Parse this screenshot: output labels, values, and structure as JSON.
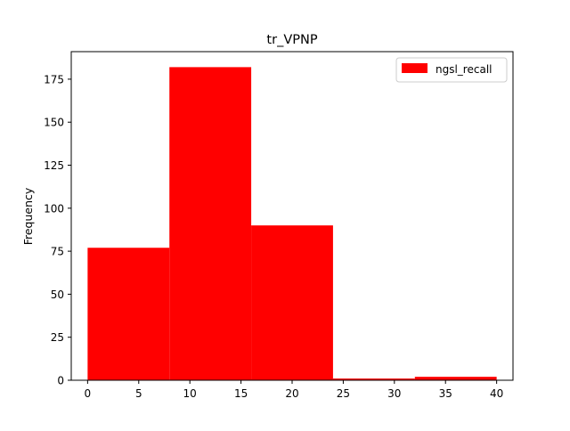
{
  "chart_data": {
    "type": "bar",
    "title": "tr_VPNP",
    "xlabel": "",
    "ylabel": "Frequency",
    "xlim": [
      -1.6,
      41.6
    ],
    "ylim": [
      0,
      191
    ],
    "x_ticks": [
      0,
      5,
      10,
      15,
      20,
      25,
      30,
      35,
      40
    ],
    "y_ticks": [
      0,
      25,
      50,
      75,
      100,
      125,
      150,
      175
    ],
    "grid": false,
    "legend_position": "top-right",
    "bin_edges": [
      0,
      8,
      16,
      24,
      32,
      40
    ],
    "series": [
      {
        "name": "ngsl_recall",
        "color": "#ff0000",
        "values": [
          77,
          182,
          90,
          1,
          2
        ]
      }
    ]
  }
}
